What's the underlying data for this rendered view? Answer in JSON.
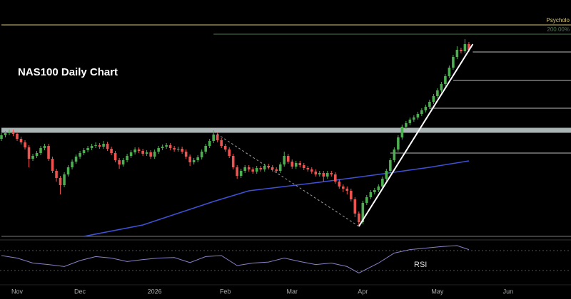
{
  "chart_data": {
    "type": "candlestick",
    "title": "NAS100 Daily Chart",
    "xlim": [
      0,
      145
    ],
    "ylim": [
      0,
      300
    ],
    "xticks": [
      {
        "value": 4,
        "label": "Nov"
      },
      {
        "value": 20,
        "label": "Dec"
      },
      {
        "value": 39,
        "label": "2026"
      },
      {
        "value": 57,
        "label": "Feb"
      },
      {
        "value": 74,
        "label": "Mar"
      },
      {
        "value": 92,
        "label": "Apr"
      },
      {
        "value": 111,
        "label": "May"
      },
      {
        "value": 129,
        "label": "Jun"
      }
    ],
    "up_color": "#4caf50",
    "down_color": "#ef5350",
    "open": [
      140,
      145,
      148,
      150,
      147,
      140,
      135,
      128,
      112,
      116,
      120,
      127,
      130,
      112,
      95,
      85,
      75,
      90,
      100,
      108,
      115,
      120,
      124,
      127,
      130,
      131,
      129,
      133,
      126,
      120,
      110,
      104,
      110,
      116,
      121,
      125,
      123,
      119,
      121,
      115,
      122,
      127,
      129,
      131,
      127,
      125,
      126,
      122,
      115,
      107,
      110,
      114,
      122,
      130,
      137,
      146,
      138,
      130,
      125,
      116,
      100,
      88,
      95,
      100,
      97,
      94,
      99,
      97,
      102,
      100,
      97,
      95,
      104,
      116,
      108,
      101,
      106,
      103,
      99,
      97,
      94,
      90,
      92,
      87,
      92,
      90,
      80,
      73,
      70,
      67,
      55,
      35,
      23,
      50,
      58,
      65,
      68,
      73,
      84,
      95,
      110,
      125,
      142,
      157,
      162,
      167,
      170,
      175,
      180,
      185,
      192,
      200,
      208,
      217,
      228,
      240,
      255,
      265,
      263,
      273
    ],
    "high": [
      148,
      151,
      153,
      153,
      150,
      143,
      138,
      131,
      119,
      123,
      130,
      133,
      133,
      115,
      98,
      88,
      93,
      103,
      111,
      118,
      123,
      127,
      130,
      133,
      135,
      134,
      137,
      136,
      129,
      123,
      113,
      113,
      119,
      124,
      128,
      128,
      126,
      124,
      124,
      125,
      130,
      132,
      134,
      134,
      130,
      129,
      129,
      125,
      118,
      113,
      117,
      125,
      133,
      140,
      152,
      149,
      141,
      133,
      128,
      119,
      103,
      98,
      103,
      103,
      100,
      102,
      102,
      105,
      105,
      103,
      100,
      107,
      122,
      119,
      111,
      109,
      109,
      106,
      102,
      100,
      97,
      95,
      95,
      95,
      95,
      93,
      83,
      76,
      73,
      70,
      58,
      38,
      53,
      61,
      68,
      71,
      76,
      87,
      98,
      113,
      128,
      145,
      160,
      165,
      170,
      173,
      178,
      183,
      188,
      195,
      203,
      211,
      220,
      231,
      243,
      258,
      270,
      268,
      280,
      276
    ],
    "low": [
      137,
      142,
      145,
      144,
      137,
      132,
      125,
      100,
      109,
      113,
      117,
      124,
      109,
      92,
      80,
      62,
      72,
      87,
      97,
      105,
      112,
      117,
      121,
      124,
      127,
      126,
      126,
      123,
      117,
      107,
      98,
      101,
      107,
      113,
      118,
      120,
      116,
      116,
      112,
      112,
      119,
      124,
      126,
      124,
      122,
      122,
      119,
      112,
      102,
      104,
      107,
      111,
      119,
      127,
      134,
      135,
      127,
      122,
      113,
      97,
      84,
      85,
      92,
      94,
      91,
      91,
      94,
      94,
      97,
      94,
      92,
      92,
      101,
      105,
      98,
      98,
      100,
      96,
      94,
      91,
      87,
      87,
      80,
      84,
      87,
      77,
      70,
      65,
      62,
      52,
      30,
      17,
      20,
      47,
      55,
      62,
      65,
      70,
      81,
      92,
      107,
      122,
      139,
      154,
      159,
      164,
      167,
      172,
      177,
      182,
      189,
      197,
      205,
      214,
      225,
      237,
      252,
      260,
      260,
      262
    ],
    "close": [
      145,
      148,
      150,
      147,
      140,
      135,
      128,
      112,
      116,
      120,
      127,
      130,
      112,
      95,
      85,
      75,
      90,
      100,
      108,
      115,
      120,
      124,
      127,
      130,
      131,
      129,
      133,
      126,
      120,
      110,
      104,
      110,
      116,
      121,
      125,
      123,
      119,
      121,
      115,
      122,
      127,
      129,
      131,
      127,
      125,
      126,
      122,
      115,
      107,
      110,
      114,
      122,
      130,
      137,
      146,
      138,
      130,
      125,
      116,
      100,
      88,
      95,
      100,
      97,
      94,
      99,
      97,
      102,
      100,
      97,
      95,
      104,
      116,
      108,
      101,
      106,
      103,
      99,
      97,
      94,
      90,
      92,
      87,
      92,
      90,
      80,
      73,
      70,
      67,
      55,
      35,
      23,
      50,
      58,
      65,
      68,
      73,
      84,
      95,
      110,
      125,
      142,
      157,
      162,
      167,
      170,
      175,
      180,
      185,
      192,
      200,
      208,
      217,
      228,
      240,
      255,
      265,
      263,
      273,
      265
    ],
    "moving_average": {
      "color": "#3f51d8",
      "x": [
        21,
        36,
        54,
        63,
        81,
        96,
        109,
        119
      ],
      "values": [
        3,
        19,
        52,
        67,
        79,
        90,
        100,
        109
      ]
    },
    "levels": [
      {
        "value": 300,
        "label": "Psycholo",
        "from": 0,
        "color": "#d8c878"
      },
      {
        "value": 287,
        "label": "200.00%",
        "from": 54,
        "color": "#4f7a4f"
      },
      {
        "value": 262,
        "from": 120,
        "color": "#bdbdbd"
      },
      {
        "value": 222,
        "from": 115,
        "color": "#bdbdbd"
      },
      {
        "value": 183,
        "from": 109,
        "color": "#bdbdbd"
      },
      {
        "value": 152,
        "from": 0,
        "color": "#c9d3d3",
        "band": true
      },
      {
        "value": 120,
        "from": 99,
        "color": "#bdbdbd"
      },
      {
        "value": 3,
        "from": 0,
        "color": "#7a7a7a"
      }
    ],
    "trendlines": [
      {
        "x": [
          91,
          120
        ],
        "values": [
          17,
          273
        ],
        "color": "#ffffff",
        "dashed": false
      },
      {
        "x": [
          54,
          91
        ],
        "values": [
          150,
          17
        ],
        "color": "#9e9e9e",
        "dashed": true
      }
    ],
    "rsi": {
      "title": "RSI",
      "color": "#8a80c8",
      "ylim": [
        0,
        100
      ],
      "levels": [
        70,
        30
      ],
      "x": [
        0,
        4,
        8,
        12,
        16,
        20,
        24,
        28,
        32,
        36,
        40,
        44,
        48,
        52,
        56,
        60,
        64,
        68,
        72,
        76,
        80,
        84,
        88,
        91,
        96,
        100,
        104,
        108,
        112,
        116,
        119
      ],
      "values": [
        60,
        55,
        45,
        42,
        38,
        50,
        58,
        55,
        48,
        52,
        55,
        56,
        46,
        58,
        60,
        40,
        45,
        47,
        55,
        48,
        42,
        45,
        38,
        25,
        45,
        65,
        72,
        75,
        78,
        80,
        72
      ]
    }
  }
}
